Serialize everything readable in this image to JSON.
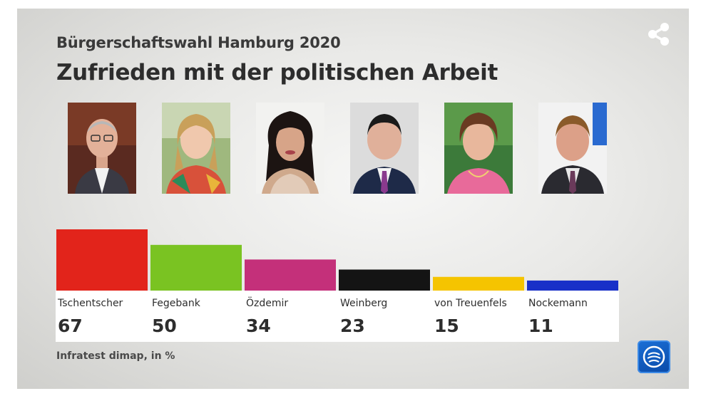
{
  "header": {
    "subtitle": "Bürgerschaftswahl Hamburg 2020",
    "title": "Zufrieden mit der politischen Arbeit"
  },
  "share": {
    "icon": "share-icon"
  },
  "chart_data": {
    "type": "bar",
    "title": "Zufrieden mit der politischen Arbeit",
    "subtitle": "Bürgerschaftswahl Hamburg 2020",
    "categories": [
      "Tschentscher",
      "Fegebank",
      "Özdemir",
      "Weinberg",
      "von Treuenfels",
      "Nockemann"
    ],
    "values": [
      67,
      50,
      34,
      23,
      15,
      11
    ],
    "colors": [
      "#e2241b",
      "#7ac322",
      "#c4307a",
      "#141414",
      "#f5c400",
      "#1830c8"
    ],
    "unit": "%",
    "ylim": [
      0,
      67
    ],
    "grid": false,
    "legend": "none",
    "xlabel": "",
    "ylabel": ""
  },
  "candidates": [
    {
      "name": "Tschentscher",
      "icon": "portrait-photo"
    },
    {
      "name": "Fegebank",
      "icon": "portrait-photo"
    },
    {
      "name": "Özdemir",
      "icon": "portrait-photo"
    },
    {
      "name": "Weinberg",
      "icon": "portrait-photo"
    },
    {
      "name": "von Treuenfels",
      "icon": "portrait-photo"
    },
    {
      "name": "Nockemann",
      "icon": "portrait-photo"
    }
  ],
  "footer": {
    "source": "Infratest dimap, in %",
    "logo_icon": "tagesschau-logo-icon"
  },
  "colors": {
    "text_dark": "#2d2d2d",
    "background": "#e9e9e7",
    "logo_blue": "#0a4aa8"
  }
}
